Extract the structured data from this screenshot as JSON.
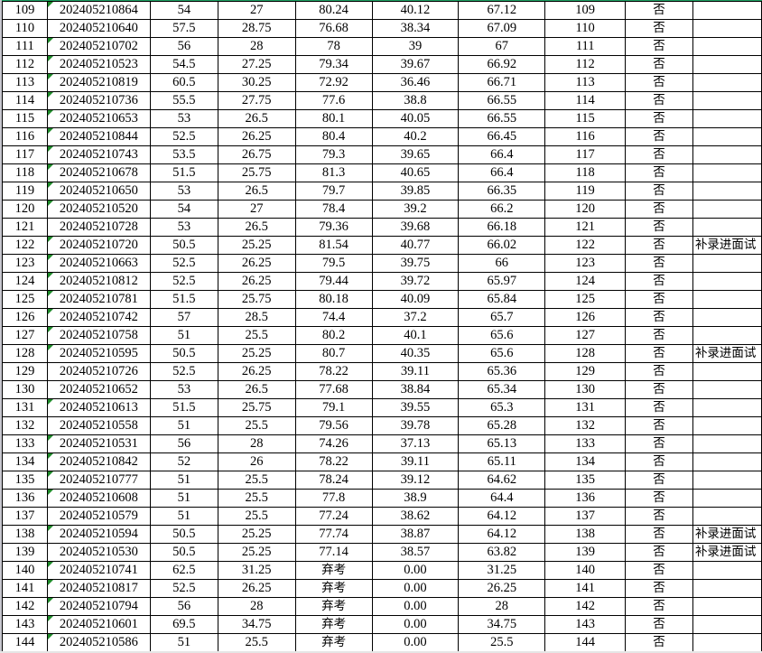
{
  "accent_color": "#21a366",
  "text_marker_color": "#1f8b2a",
  "rows": [
    {
      "c": [
        "109",
        "202405210864",
        "54",
        "27",
        "80.24",
        "40.12",
        "67.12",
        "109",
        "否",
        ""
      ],
      "m": true
    },
    {
      "c": [
        "110",
        "202405210640",
        "57.5",
        "28.75",
        "76.68",
        "38.34",
        "67.09",
        "110",
        "否",
        ""
      ],
      "m": false
    },
    {
      "c": [
        "111",
        "202405210702",
        "56",
        "28",
        "78",
        "39",
        "67",
        "111",
        "否",
        ""
      ],
      "m": true
    },
    {
      "c": [
        "112",
        "202405210523",
        "54.5",
        "27.25",
        "79.34",
        "39.67",
        "66.92",
        "112",
        "否",
        ""
      ],
      "m": true
    },
    {
      "c": [
        "113",
        "202405210819",
        "60.5",
        "30.25",
        "72.92",
        "36.46",
        "66.71",
        "113",
        "否",
        ""
      ],
      "m": true
    },
    {
      "c": [
        "114",
        "202405210736",
        "55.5",
        "27.75",
        "77.6",
        "38.8",
        "66.55",
        "114",
        "否",
        ""
      ],
      "m": true
    },
    {
      "c": [
        "115",
        "202405210653",
        "53",
        "26.5",
        "80.1",
        "40.05",
        "66.55",
        "115",
        "否",
        ""
      ],
      "m": true
    },
    {
      "c": [
        "116",
        "202405210844",
        "52.5",
        "26.25",
        "80.4",
        "40.2",
        "66.45",
        "116",
        "否",
        ""
      ],
      "m": true
    },
    {
      "c": [
        "117",
        "202405210743",
        "53.5",
        "26.75",
        "79.3",
        "39.65",
        "66.4",
        "117",
        "否",
        ""
      ],
      "m": true
    },
    {
      "c": [
        "118",
        "202405210678",
        "51.5",
        "25.75",
        "81.3",
        "40.65",
        "66.4",
        "118",
        "否",
        ""
      ],
      "m": true
    },
    {
      "c": [
        "119",
        "202405210650",
        "53",
        "26.5",
        "79.7",
        "39.85",
        "66.35",
        "119",
        "否",
        ""
      ],
      "m": true
    },
    {
      "c": [
        "120",
        "202405210520",
        "54",
        "27",
        "78.4",
        "39.2",
        "66.2",
        "120",
        "否",
        ""
      ],
      "m": true
    },
    {
      "c": [
        "121",
        "202405210728",
        "53",
        "26.5",
        "79.36",
        "39.68",
        "66.18",
        "121",
        "否",
        ""
      ],
      "m": false
    },
    {
      "c": [
        "122",
        "202405210720",
        "50.5",
        "25.25",
        "81.54",
        "40.77",
        "66.02",
        "122",
        "否",
        "补录进面试"
      ],
      "m": true
    },
    {
      "c": [
        "123",
        "202405210663",
        "52.5",
        "26.25",
        "79.5",
        "39.75",
        "66",
        "123",
        "否",
        ""
      ],
      "m": true
    },
    {
      "c": [
        "124",
        "202405210812",
        "52.5",
        "26.25",
        "79.44",
        "39.72",
        "65.97",
        "124",
        "否",
        ""
      ],
      "m": true
    },
    {
      "c": [
        "125",
        "202405210781",
        "51.5",
        "25.75",
        "80.18",
        "40.09",
        "65.84",
        "125",
        "否",
        ""
      ],
      "m": true
    },
    {
      "c": [
        "126",
        "202405210742",
        "57",
        "28.5",
        "74.4",
        "37.2",
        "65.7",
        "126",
        "否",
        ""
      ],
      "m": true
    },
    {
      "c": [
        "127",
        "202405210758",
        "51",
        "25.5",
        "80.2",
        "40.1",
        "65.6",
        "127",
        "否",
        ""
      ],
      "m": true
    },
    {
      "c": [
        "128",
        "202405210595",
        "50.5",
        "25.25",
        "80.7",
        "40.35",
        "65.6",
        "128",
        "否",
        "补录进面试"
      ],
      "m": true
    },
    {
      "c": [
        "129",
        "202405210726",
        "52.5",
        "26.25",
        "78.22",
        "39.11",
        "65.36",
        "129",
        "否",
        ""
      ],
      "m": false
    },
    {
      "c": [
        "130",
        "202405210652",
        "53",
        "26.5",
        "77.68",
        "38.84",
        "65.34",
        "130",
        "否",
        ""
      ],
      "m": false
    },
    {
      "c": [
        "131",
        "202405210613",
        "51.5",
        "25.75",
        "79.1",
        "39.55",
        "65.3",
        "131",
        "否",
        ""
      ],
      "m": true
    },
    {
      "c": [
        "132",
        "202405210558",
        "51",
        "25.5",
        "79.56",
        "39.78",
        "65.28",
        "132",
        "否",
        ""
      ],
      "m": false
    },
    {
      "c": [
        "133",
        "202405210531",
        "56",
        "28",
        "74.26",
        "37.13",
        "65.13",
        "133",
        "否",
        ""
      ],
      "m": true
    },
    {
      "c": [
        "134",
        "202405210842",
        "52",
        "26",
        "78.22",
        "39.11",
        "65.11",
        "134",
        "否",
        ""
      ],
      "m": true
    },
    {
      "c": [
        "135",
        "202405210777",
        "51",
        "25.5",
        "78.24",
        "39.12",
        "64.62",
        "135",
        "否",
        ""
      ],
      "m": true
    },
    {
      "c": [
        "136",
        "202405210608",
        "51",
        "25.5",
        "77.8",
        "38.9",
        "64.4",
        "136",
        "否",
        ""
      ],
      "m": true
    },
    {
      "c": [
        "137",
        "202405210579",
        "51",
        "25.5",
        "77.24",
        "38.62",
        "64.12",
        "137",
        "否",
        ""
      ],
      "m": false
    },
    {
      "c": [
        "138",
        "202405210594",
        "50.5",
        "25.25",
        "77.74",
        "38.87",
        "64.12",
        "138",
        "否",
        "补录进面试"
      ],
      "m": true
    },
    {
      "c": [
        "139",
        "202405210530",
        "50.5",
        "25.25",
        "77.14",
        "38.57",
        "63.82",
        "139",
        "否",
        "补录进面试"
      ],
      "m": false
    },
    {
      "c": [
        "140",
        "202405210741",
        "62.5",
        "31.25",
        "弃考",
        "0.00",
        "31.25",
        "140",
        "否",
        ""
      ],
      "m": true
    },
    {
      "c": [
        "141",
        "202405210817",
        "52.5",
        "26.25",
        "弃考",
        "0.00",
        "26.25",
        "141",
        "否",
        ""
      ],
      "m": true
    },
    {
      "c": [
        "142",
        "202405210794",
        "56",
        "28",
        "弃考",
        "0.00",
        "28",
        "142",
        "否",
        ""
      ],
      "m": true
    },
    {
      "c": [
        "143",
        "202405210601",
        "69.5",
        "34.75",
        "弃考",
        "0.00",
        "34.75",
        "143",
        "否",
        ""
      ],
      "m": true
    },
    {
      "c": [
        "144",
        "202405210586",
        "51",
        "25.5",
        "弃考",
        "0.00",
        "25.5",
        "144",
        "否",
        ""
      ],
      "m": true
    }
  ]
}
